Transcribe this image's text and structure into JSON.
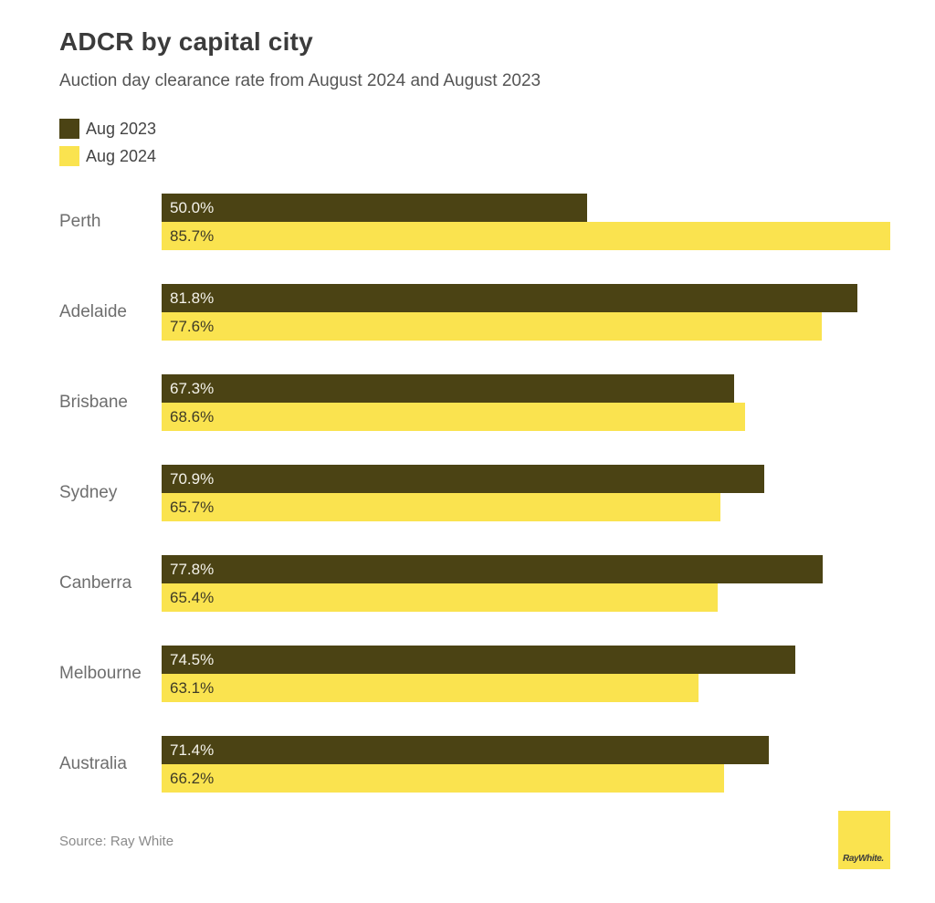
{
  "header": {
    "title": "ADCR by capital city",
    "subtitle": "Auction day clearance rate from August 2024 and August 2023"
  },
  "legend": [
    {
      "label": "Aug 2023",
      "color": "#4b4314"
    },
    {
      "label": "Aug 2024",
      "color": "#fae34f"
    }
  ],
  "chart_data": {
    "type": "bar",
    "orientation": "horizontal",
    "title": "ADCR by capital city",
    "subtitle": "Auction day clearance rate from August 2024 and August 2023",
    "xlabel": "",
    "ylabel": "",
    "grid": false,
    "legend_position": "top-left",
    "value_labels": "inside-left",
    "xmax": 85.7,
    "categories": [
      "Perth",
      "Adelaide",
      "Brisbane",
      "Sydney",
      "Canberra",
      "Melbourne",
      "Australia"
    ],
    "series": [
      {
        "name": "Aug 2023",
        "color": "#4b4314",
        "label_color": "#f4f2ea",
        "values": [
          50.0,
          81.8,
          67.3,
          70.9,
          77.8,
          74.5,
          71.4
        ],
        "labels": [
          "50.0%",
          "81.8%",
          "67.3%",
          "70.9%",
          "77.8%",
          "74.5%",
          "71.4%"
        ]
      },
      {
        "name": "Aug 2024",
        "color": "#fae34f",
        "label_color": "#3e3a26",
        "values": [
          85.7,
          77.6,
          68.6,
          65.7,
          65.4,
          63.1,
          66.2
        ],
        "labels": [
          "85.7%",
          "77.6%",
          "68.6%",
          "65.7%",
          "65.4%",
          "63.1%",
          "66.2%"
        ]
      }
    ]
  },
  "footer": {
    "source": "Source: Ray White",
    "logo_text": "RayWhite."
  }
}
